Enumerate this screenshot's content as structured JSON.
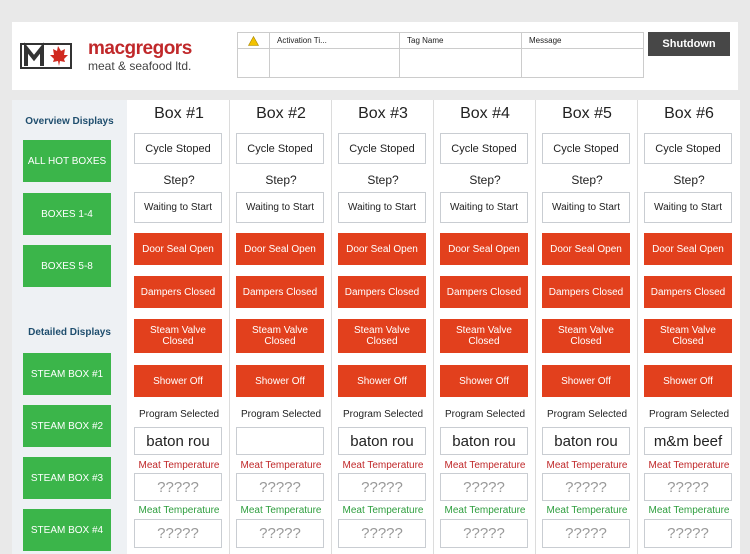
{
  "header": {
    "logo": {
      "name": "macgregors",
      "tagline": "meat & seafood ltd."
    },
    "alarm_table": {
      "columns": [
        "Activation Ti...",
        "Tag Name",
        "Message"
      ]
    },
    "shutdown": "Shutdown"
  },
  "sidebar": {
    "overview_title": "Overview Displays",
    "overview_buttons": [
      "ALL HOT BOXES",
      "BOXES 1-4",
      "BOXES 5-8"
    ],
    "detailed_title": "Detailed Displays",
    "detailed_buttons": [
      "STEAM BOX #1",
      "STEAM BOX #2",
      "STEAM BOX #3",
      "STEAM BOX #4"
    ]
  },
  "boxes": [
    {
      "title": "Box #1",
      "status": "Cycle Stoped",
      "step_label": "Step?",
      "step": "Waiting to Start",
      "alarms": [
        "Door Seal Open",
        "Dampers Closed",
        "Steam Valve Closed",
        "Shower Off"
      ],
      "program_label": "Program Selected",
      "program": "baton rou",
      "meat_temp_label": "Meat Temperature",
      "meat_temp": "?????",
      "meat_temp2_label": "Meat Temperature",
      "meat_temp2": "?????"
    },
    {
      "title": "Box #2",
      "status": "Cycle Stoped",
      "step_label": "Step?",
      "step": "Waiting to Start",
      "alarms": [
        "Door Seal Open",
        "Dampers Closed",
        "Steam Valve Closed",
        "Shower Off"
      ],
      "program_label": "Program Selected",
      "meat_temp_label": "Meat Temperature",
      "meat_temp": "?????",
      "meat_temp2_label": "Meat Temperature",
      "meat_temp2": "?????"
    },
    {
      "title": "Box #3",
      "status": "Cycle Stoped",
      "step_label": "Step?",
      "step": "Waiting to Start",
      "alarms": [
        "Door Seal Open",
        "Dampers Closed",
        "Steam Valve Closed",
        "Shower Off"
      ],
      "program_label": "Program Selected",
      "program": "baton rou",
      "meat_temp_label": "Meat Temperature",
      "meat_temp": "?????",
      "meat_temp2_label": "Meat Temperature",
      "meat_temp2": "?????"
    },
    {
      "title": "Box #4",
      "status": "Cycle Stoped",
      "step_label": "Step?",
      "step": "Waiting to Start",
      "alarms": [
        "Door Seal Open",
        "Dampers Closed",
        "Steam Valve Closed",
        "Shower Off"
      ],
      "program_label": "Program Selected",
      "program": "baton rou",
      "meat_temp_label": "Meat Temperature",
      "meat_temp": "?????",
      "meat_temp2_label": "Meat Temperature",
      "meat_temp2": "?????"
    },
    {
      "title": "Box #5",
      "status": "Cycle Stoped",
      "step_label": "Step?",
      "step": "Waiting to Start",
      "alarms": [
        "Door Seal Open",
        "Dampers Closed",
        "Steam Valve Closed",
        "Shower Off"
      ],
      "program_label": "Program Selected",
      "program": "baton rou",
      "meat_temp_label": "Meat Temperature",
      "meat_temp": "?????",
      "meat_temp2_label": "Meat Temperature",
      "meat_temp2": "?????"
    },
    {
      "title": "Box #6",
      "status": "Cycle Stoped",
      "step_label": "Step?",
      "step": "Waiting to Start",
      "alarms": [
        "Door Seal Open",
        "Dampers Closed",
        "Steam Valve Closed",
        "Shower Off"
      ],
      "program_label": "Program Selected",
      "program": "m&m beef",
      "meat_temp_label": "Meat Temperature",
      "meat_temp": "?????",
      "meat_temp2_label": "Meat Temperature",
      "meat_temp2": "?????"
    }
  ]
}
